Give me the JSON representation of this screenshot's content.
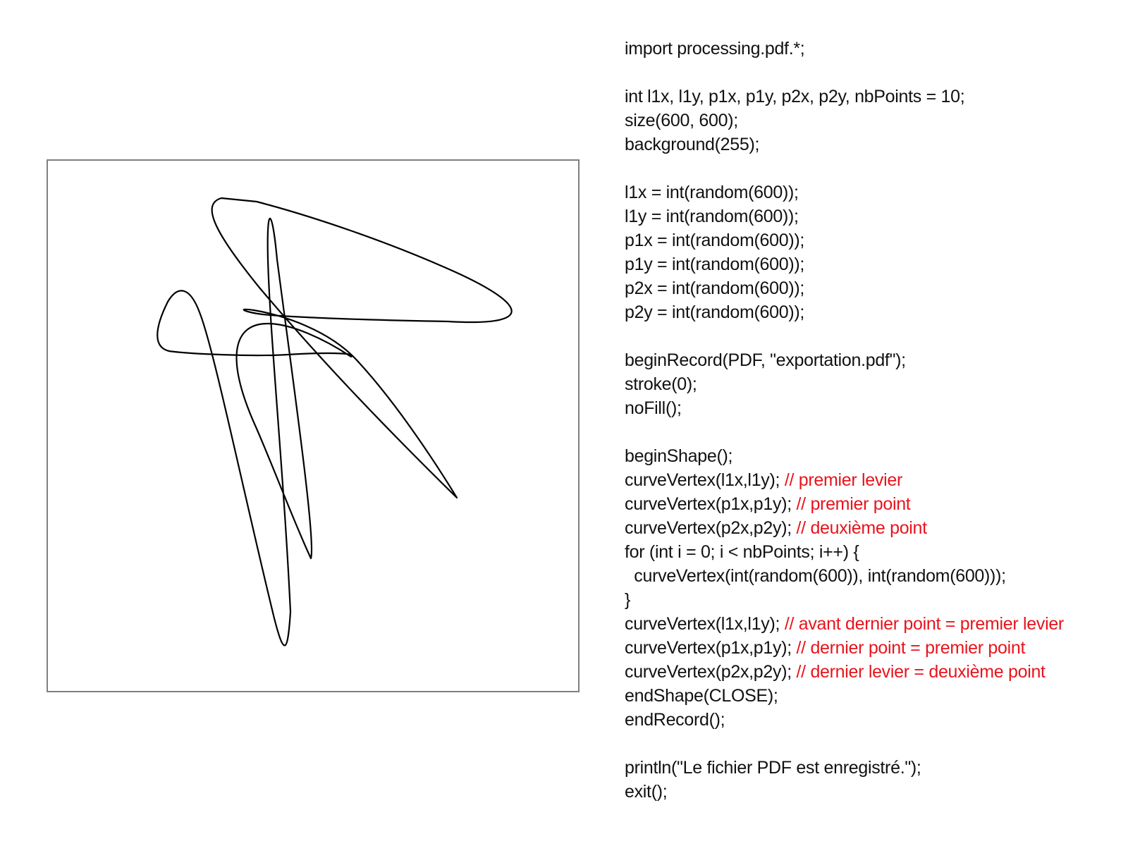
{
  "colors": {
    "code_text": "#111111",
    "comment": "#e8141c",
    "frame_border": "#808080",
    "curve_stroke": "#000000",
    "background": "#ffffff"
  },
  "code_lines": [
    {
      "code": "import processing.pdf.*;",
      "comment": ""
    },
    {
      "code": "",
      "comment": ""
    },
    {
      "code": "int l1x, l1y, p1x, p1y, p2x, p2y, nbPoints = 10;",
      "comment": ""
    },
    {
      "code": "size(600, 600);",
      "comment": ""
    },
    {
      "code": "background(255);",
      "comment": ""
    },
    {
      "code": "",
      "comment": ""
    },
    {
      "code": "l1x = int(random(600));",
      "comment": ""
    },
    {
      "code": "l1y = int(random(600));",
      "comment": ""
    },
    {
      "code": "p1x = int(random(600));",
      "comment": ""
    },
    {
      "code": "p1y = int(random(600));",
      "comment": ""
    },
    {
      "code": "p2x = int(random(600));",
      "comment": ""
    },
    {
      "code": "p2y = int(random(600));",
      "comment": ""
    },
    {
      "code": "",
      "comment": ""
    },
    {
      "code": "beginRecord(PDF, \"exportation.pdf\");",
      "comment": ""
    },
    {
      "code": "stroke(0);",
      "comment": ""
    },
    {
      "code": "noFill();",
      "comment": ""
    },
    {
      "code": "",
      "comment": ""
    },
    {
      "code": "beginShape();",
      "comment": ""
    },
    {
      "code": "curveVertex(l1x,l1y); ",
      "comment": "// premier levier"
    },
    {
      "code": "curveVertex(p1x,p1y); ",
      "comment": "// premier point"
    },
    {
      "code": "curveVertex(p2x,p2y); ",
      "comment": "// deuxième point"
    },
    {
      "code": "for (int i = 0; i < nbPoints; i++) {",
      "comment": ""
    },
    {
      "code": "  curveVertex(int(random(600)), int(random(600)));",
      "comment": ""
    },
    {
      "code": "}",
      "comment": ""
    },
    {
      "code": "curveVertex(l1x,l1y); ",
      "comment": "// avant dernier point = premier levier"
    },
    {
      "code": "curveVertex(p1x,p1y); ",
      "comment": "// dernier point = premier point"
    },
    {
      "code": "curveVertex(p2x,p2y); ",
      "comment": "// dernier levier = deuxième point"
    },
    {
      "code": "endShape(CLOSE);",
      "comment": ""
    },
    {
      "code": "endRecord();",
      "comment": ""
    },
    {
      "code": "",
      "comment": ""
    },
    {
      "code": "println(\"Le fichier PDF est enregistré.\");",
      "comment": ""
    },
    {
      "code": "exit();",
      "comment": ""
    }
  ]
}
